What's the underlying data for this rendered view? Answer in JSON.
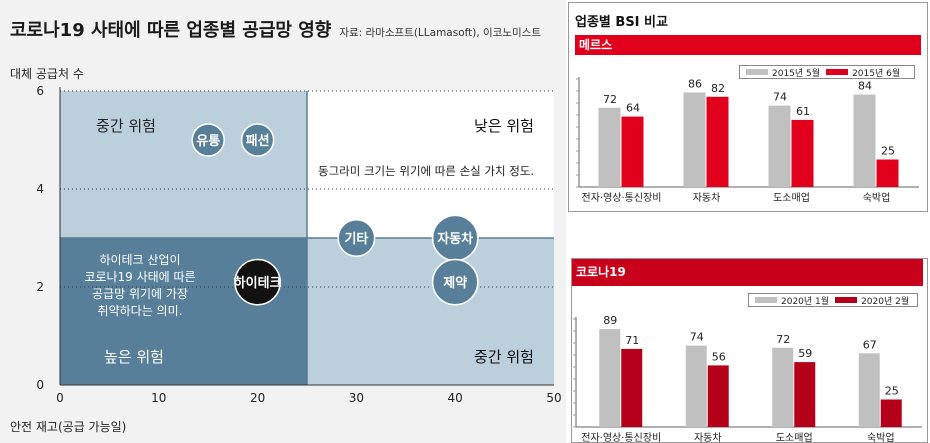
{
  "main": {
    "title": "코로나19 사태에 따른 업종별 공급망 영향",
    "source": "자료: 라마소프트(LLamasoft), 이코노미스트",
    "y_axis_label": "대체 공급처 수",
    "x_axis_label": "안전 재고(공급 가능일)",
    "quadrants": {
      "top_left": "중간 위험",
      "top_right": "낮은 위험",
      "bottom_left": "높은 위험",
      "bottom_right": "중간 위험"
    },
    "note_top": "동그라미 크기는 위기에 따른 손실 가치 정도.",
    "note_bottom": [
      "하이테크 산업이",
      "코로나19 사태에 따른",
      "공급망 위기에 가장",
      "취약하다는 의미."
    ],
    "colors": {
      "bubble": "#587f9a",
      "hightech": "#111111",
      "q_high": "#587f9a",
      "q_mid": "#bccfdd",
      "q_low": "#ffffff"
    }
  },
  "chart_data": [
    {
      "type": "scatter",
      "title": "코로나19 사태에 따른 업종별 공급망 영향",
      "xlabel": "안전 재고(공급 가능일)",
      "ylabel": "대체 공급처 수",
      "xlim": [
        0,
        50
      ],
      "ylim": [
        0,
        6
      ],
      "x_ticks": [
        0,
        10,
        20,
        30,
        40,
        50
      ],
      "y_ticks": [
        0,
        2,
        4,
        6
      ],
      "points": [
        {
          "label": "유통",
          "x": 15,
          "y": 5.0,
          "size": 1.0
        },
        {
          "label": "패션",
          "x": 20,
          "y": 5.0,
          "size": 1.0
        },
        {
          "label": "기타",
          "x": 30,
          "y": 3.0,
          "size": 1.3
        },
        {
          "label": "자동차",
          "x": 40,
          "y": 3.0,
          "size": 2.0
        },
        {
          "label": "제약",
          "x": 40,
          "y": 2.1,
          "size": 2.0
        },
        {
          "label": "하이테크",
          "x": 20,
          "y": 2.1,
          "size": 2.0
        }
      ]
    },
    {
      "type": "bar",
      "title": "업종별 BSI 비교",
      "subtitle": "메르스",
      "categories": [
        "전자·영상·통신장비",
        "자동차",
        "도소매업",
        "숙박업"
      ],
      "series": [
        {
          "name": "2015년 5월",
          "values": [
            72,
            86,
            74,
            84
          ],
          "color": "#c0c0c0"
        },
        {
          "name": "2015년 6월",
          "values": [
            64,
            82,
            61,
            25
          ],
          "color": "#e0001b"
        }
      ],
      "ylim": [
        0,
        100
      ],
      "legend": "top"
    },
    {
      "type": "bar",
      "subtitle": "코로나19",
      "categories": [
        "전자·영상·통신장비",
        "자동차",
        "도소매업",
        "숙박업"
      ],
      "series": [
        {
          "name": "2020년 1월",
          "values": [
            89,
            74,
            72,
            67
          ],
          "color": "#c0c0c0"
        },
        {
          "name": "2020년 2월",
          "values": [
            71,
            56,
            59,
            25
          ],
          "color": "#b5001a"
        }
      ],
      "ylim": [
        0,
        100
      ],
      "legend": "top"
    }
  ]
}
